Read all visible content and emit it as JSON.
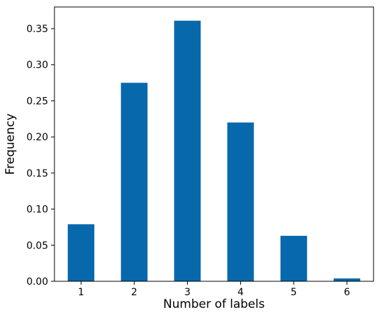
{
  "chart_data": {
    "type": "bar",
    "categories": [
      "1",
      "2",
      "3",
      "4",
      "5",
      "6"
    ],
    "values": [
      0.079,
      0.275,
      0.361,
      0.22,
      0.063,
      0.004
    ],
    "title": "",
    "xlabel": "Number of labels",
    "ylabel": "Frequency",
    "ylim": [
      0,
      0.38
    ],
    "yticks": [
      "0.00",
      "0.05",
      "0.10",
      "0.15",
      "0.20",
      "0.25",
      "0.30",
      "0.35"
    ],
    "ytick_values": [
      0,
      0.05,
      0.1,
      0.15,
      0.2,
      0.25,
      0.3,
      0.35
    ],
    "grid": false,
    "bar_color": "#0868ac"
  }
}
